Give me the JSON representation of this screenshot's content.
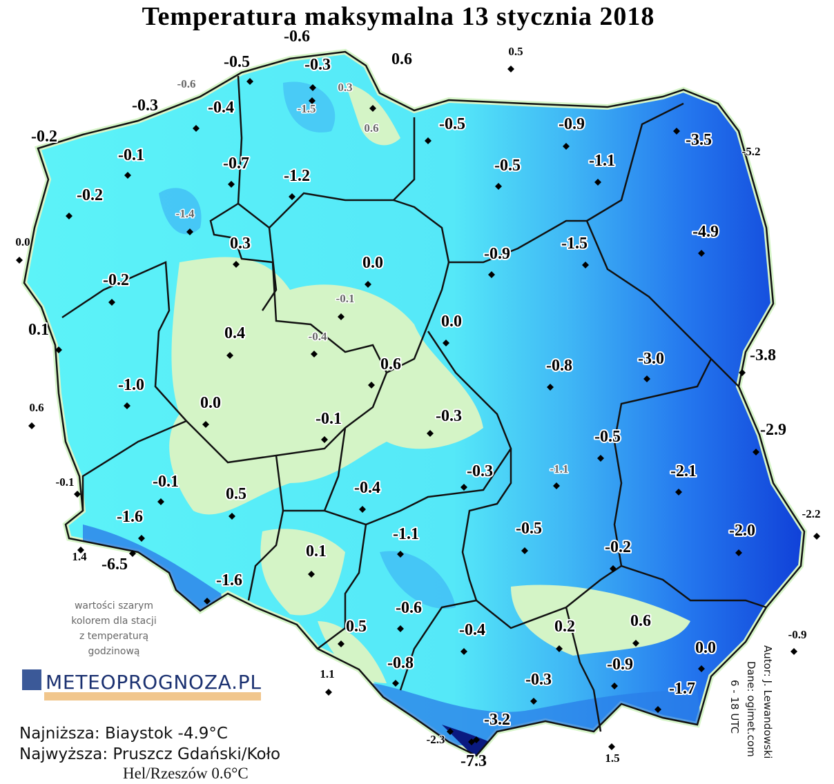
{
  "title": "Temperatura maksymalna 13 stycznia 2018",
  "stations": [
    "-0.6",
    "-0.5",
    "-0.3",
    "0.6",
    "0.5",
    "-0.6",
    "0.3",
    "-1.5",
    "-0.3",
    "-0.4",
    "0.6",
    "-0.5",
    "-0.9",
    "-3.5",
    "-5.2",
    "-0.2",
    "-0.1",
    "-0.7",
    "-1.2",
    "-0.5",
    "-1.1",
    "-0.2",
    "-1.4",
    "0.0",
    "0.3",
    "-4.9",
    "0.0",
    "-0.9",
    "-1.5",
    "-0.2",
    "-0.1",
    "0.1",
    "0.4",
    "-0.4",
    "0.0",
    "0.6",
    "-3.0",
    "-3.8",
    "-0.8",
    "-1.0",
    "0.0",
    "0.6",
    "-0.1",
    "-0.3",
    "-2.9",
    "-0.5",
    "-1.1",
    "-0.3",
    "-2.1",
    "-0.1",
    "-0.1",
    "-0.4",
    "0.5",
    "-1.6",
    "-2.2",
    "-2.0",
    "-0.5",
    "-1.1",
    "-0.2",
    "1.4",
    "-6.5",
    "0.1",
    "-1.6",
    "-0.6",
    "0.5",
    "-0.4",
    "0.2",
    "0.6",
    "-0.9",
    "0.0",
    "-0.9",
    "1.1",
    "-0.8",
    "-0.3",
    "-1.7",
    "-3.2",
    "-2.3",
    "-7.3",
    "1.5"
  ],
  "note": [
    "wartości szarym",
    "kolorem dla stacji",
    "z temperaturą",
    "godzinową"
  ],
  "logo": "METEOPROGNOZA.PL",
  "extremes": [
    "Najniższa: Biaystok -4.9°C",
    "Najwyższa: Pruszcz Gdański/Koło",
    "Hel/Rzeszów 0.6°C"
  ],
  "credits": [
    "Autor: J. Lewandowski",
    "Dane: ogimet.com",
    "6 - 18 UTC"
  ]
}
